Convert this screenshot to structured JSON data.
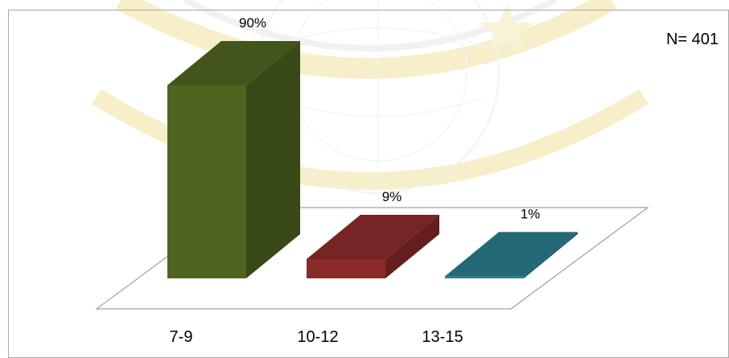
{
  "chart_data": {
    "type": "bar",
    "style": "3d",
    "annotation": "N= 401",
    "categories": [
      "7-9",
      "10-12",
      "13-15"
    ],
    "values": [
      90,
      9,
      1
    ],
    "data_labels": [
      "90%",
      "9%",
      "1%"
    ],
    "ylim": [
      0,
      100
    ],
    "grid": false,
    "colors": [
      "#4f6420",
      "#8b2a2a",
      "#2b7a8a"
    ]
  },
  "watermark": {
    "description": "university seal (faint yellow/gray)",
    "colors": [
      "#f3e6a8",
      "#d9d9d9"
    ]
  }
}
